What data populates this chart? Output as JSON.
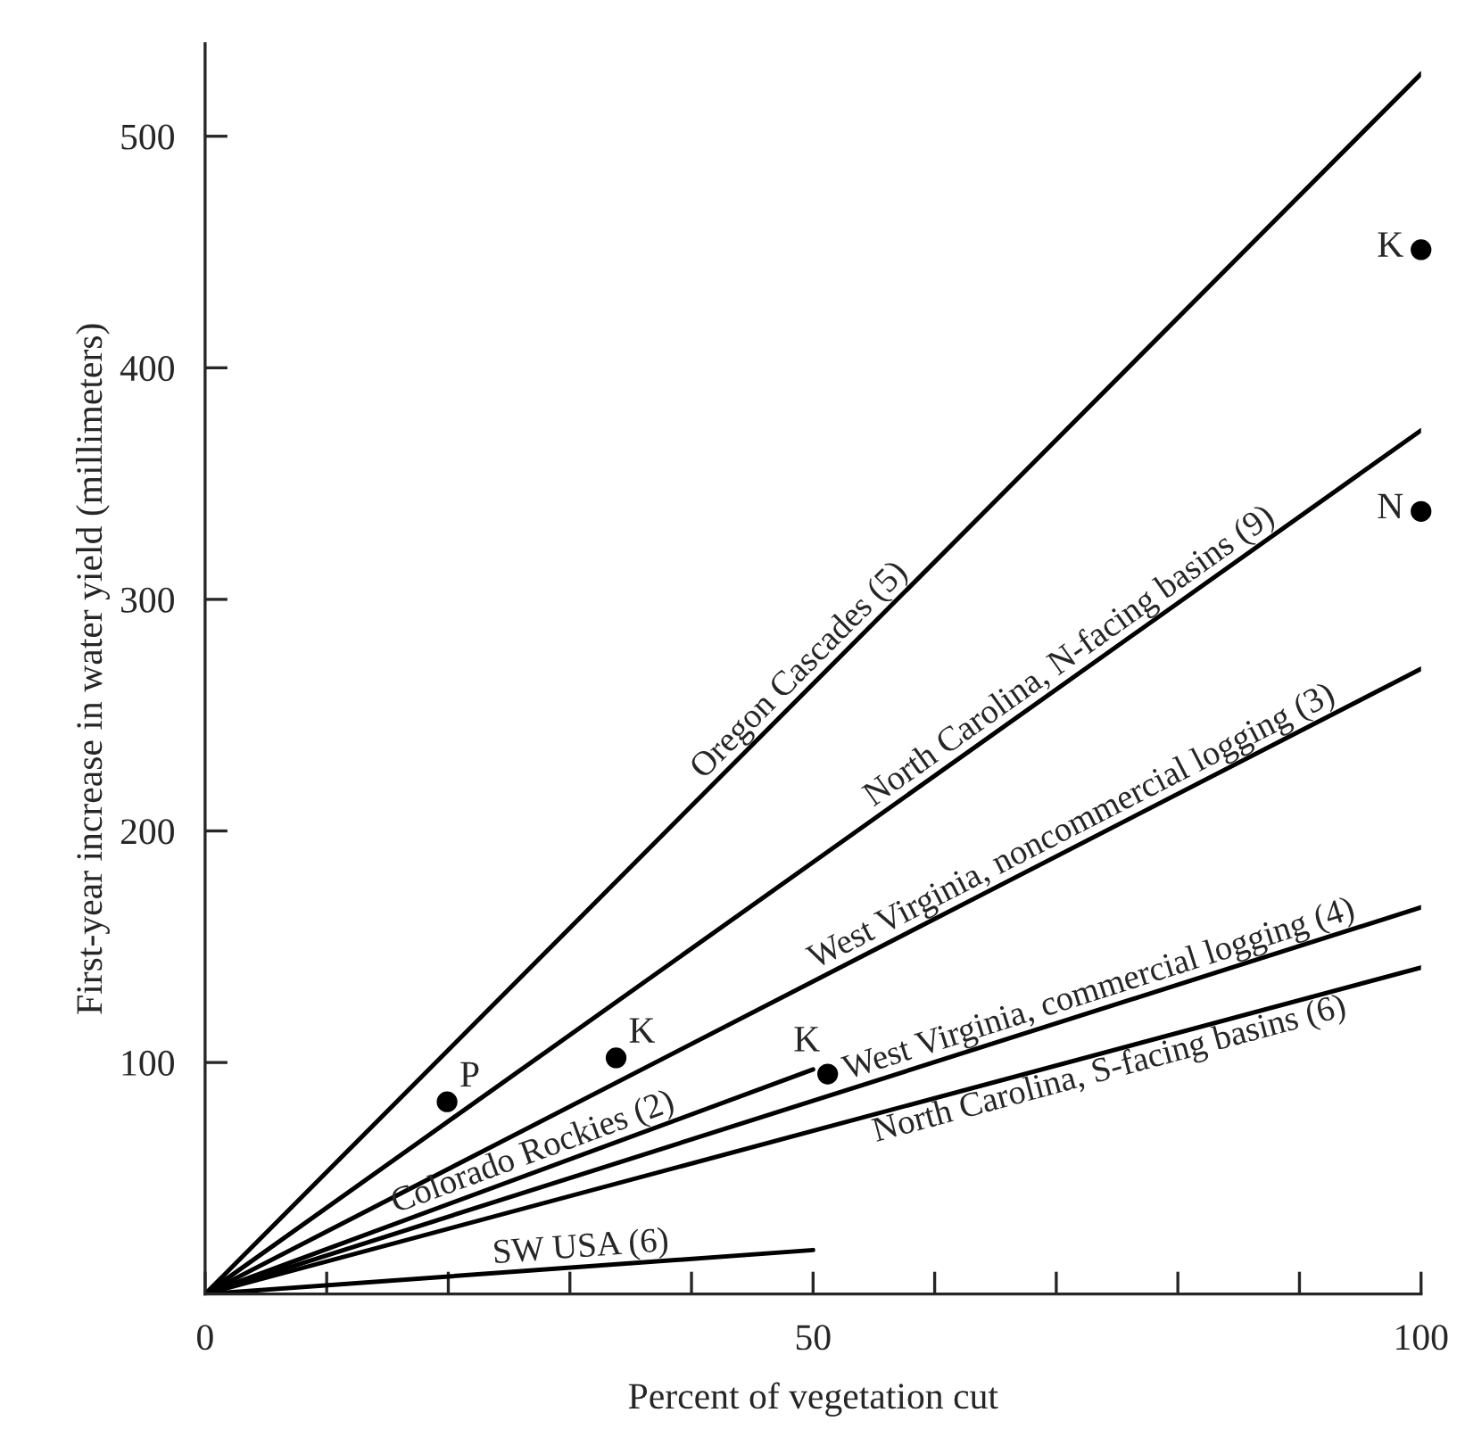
{
  "chart_data": {
    "type": "line",
    "xlabel": "Percent of vegetation cut",
    "ylabel": "First-year increase in water yield (millimeters)",
    "xlim": [
      0,
      100
    ],
    "ylim": [
      0,
      540
    ],
    "xticks": [
      {
        "value": 0,
        "label": "0"
      },
      {
        "value": 10,
        "label": null
      },
      {
        "value": 20,
        "label": null
      },
      {
        "value": 30,
        "label": null
      },
      {
        "value": 40,
        "label": null
      },
      {
        "value": 50,
        "label": "50"
      },
      {
        "value": 60,
        "label": null
      },
      {
        "value": 70,
        "label": null
      },
      {
        "value": 80,
        "label": null
      },
      {
        "value": 90,
        "label": null
      },
      {
        "value": 100,
        "label": "100"
      }
    ],
    "yticks": [
      100,
      200,
      300,
      400,
      500
    ],
    "grid": false,
    "legend": false,
    "marker": "none",
    "line_style": "solid",
    "series": [
      {
        "name": "Oregon Cascades (5)",
        "color": "#000000",
        "x": [
          0,
          100
        ],
        "values": [
          0,
          527
        ]
      },
      {
        "name": "North Carolina, N-facing basins (9)",
        "color": "#000000",
        "x": [
          0,
          100
        ],
        "values": [
          0,
          373
        ]
      },
      {
        "name": "West Virginia, noncommercial logging (3)",
        "color": "#000000",
        "x": [
          0,
          100
        ],
        "values": [
          0,
          270
        ]
      },
      {
        "name": "West Virginia, commercial logging (4)",
        "color": "#000000",
        "x": [
          0,
          100
        ],
        "values": [
          0,
          167
        ]
      },
      {
        "name": "North Carolina, S-facing basins (6)",
        "color": "#000000",
        "x": [
          0,
          100
        ],
        "values": [
          0,
          141
        ]
      },
      {
        "name": "Colorado Rockies (2)",
        "color": "#000000",
        "x": [
          0,
          50
        ],
        "values": [
          0,
          97
        ]
      },
      {
        "name": "SW USA (6)",
        "color": "#000000",
        "x": [
          0,
          50
        ],
        "values": [
          0,
          19
        ]
      },
      {
        "type": "scatter",
        "color": "#000000",
        "marker": "circle",
        "x": [
          19.9,
          33.8,
          51.2,
          100,
          100
        ],
        "values": [
          83,
          102,
          95,
          451,
          338
        ]
      }
    ],
    "annotations": [
      {
        "text": "P",
        "x": 19.9,
        "y": 83
      },
      {
        "text": "K",
        "x": 33.8,
        "y": 102
      },
      {
        "text": "K",
        "x": 51.2,
        "y": 95
      },
      {
        "text": "K",
        "x": 100,
        "y": 451
      },
      {
        "text": "N",
        "x": 100,
        "y": 338
      }
    ]
  }
}
